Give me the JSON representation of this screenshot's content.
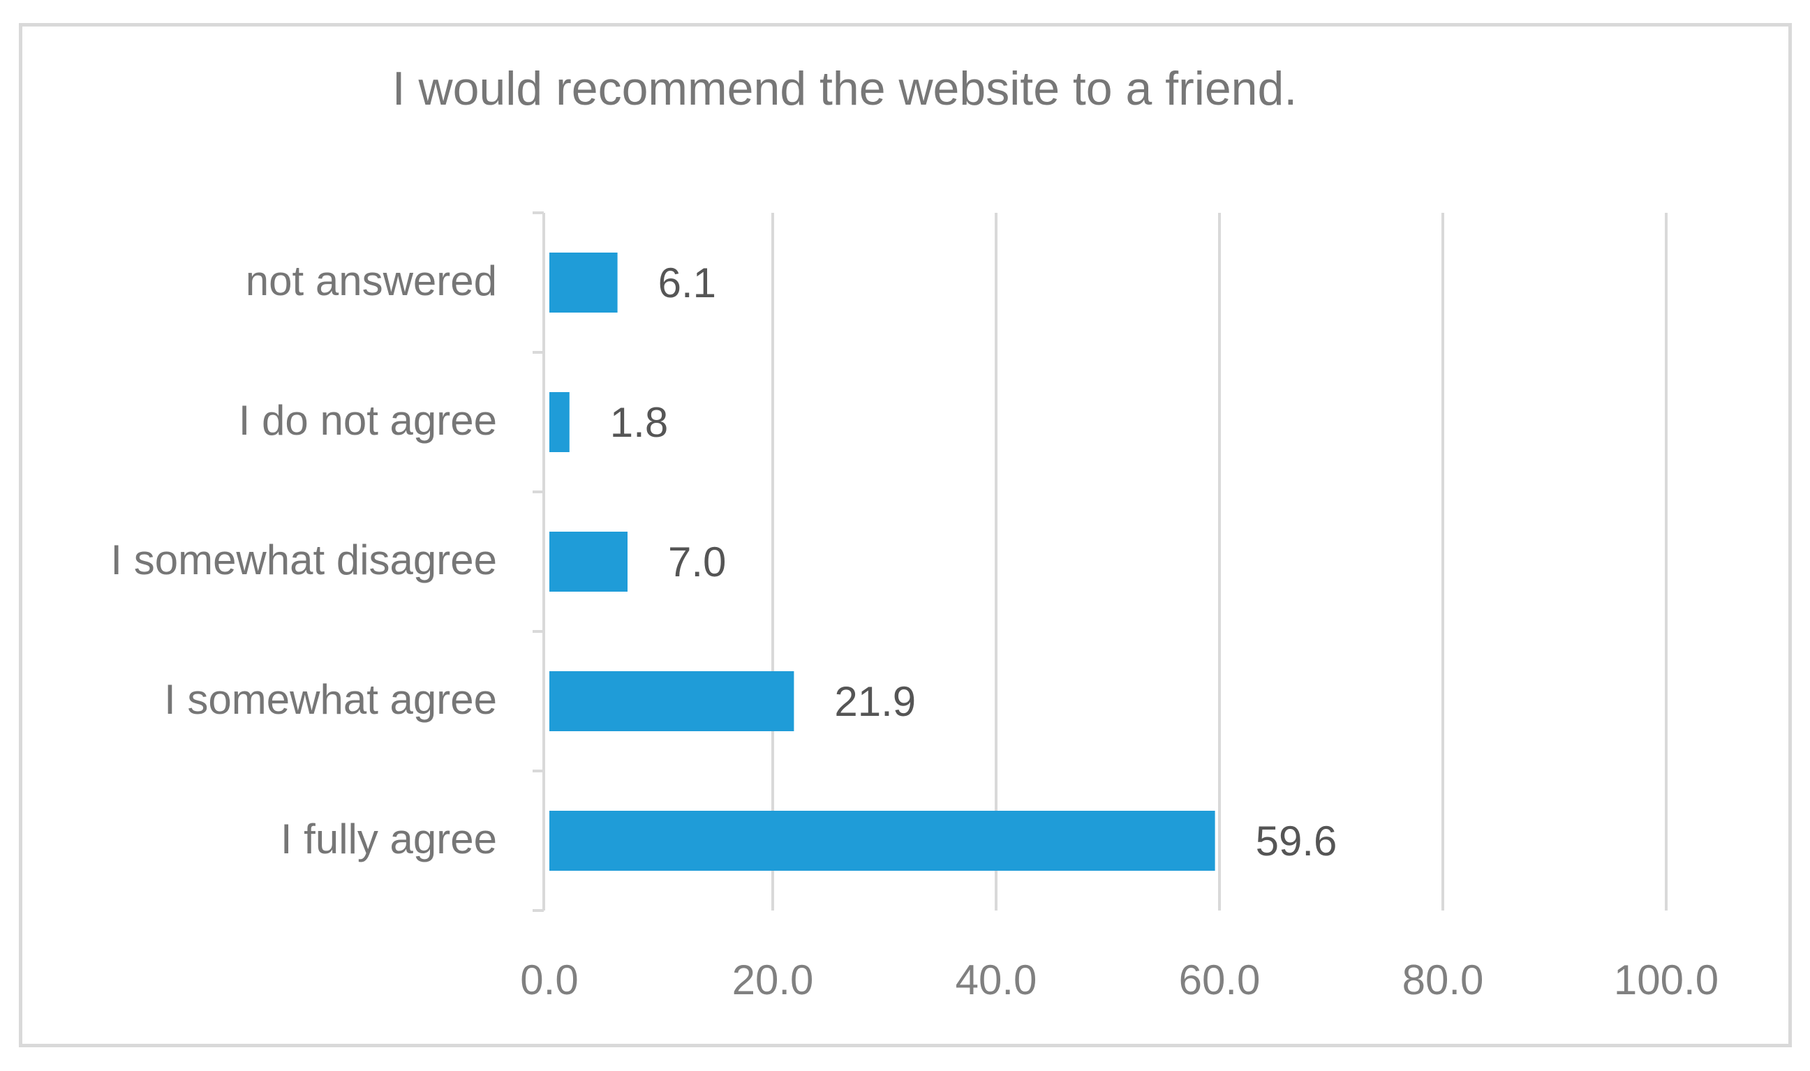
{
  "chart_data": {
    "type": "bar",
    "orientation": "horizontal",
    "title": "I would recommend the website to a friend.",
    "categories": [
      "I fully agree",
      "I somewhat agree",
      "I somewhat disagree",
      "I do not agree",
      "not answered"
    ],
    "values": [
      59.6,
      21.9,
      7.0,
      1.8,
      6.1
    ],
    "data_labels": [
      "59.6",
      "21.9",
      "7.0",
      "1.8",
      "6.1"
    ],
    "xlim": [
      0,
      100
    ],
    "xticks": [
      0,
      20,
      40,
      60,
      80,
      100
    ],
    "xtick_labels": [
      "0.0",
      "20.0",
      "40.0",
      "60.0",
      "80.0",
      "100.0"
    ],
    "xlabel": "",
    "ylabel": "",
    "grid": "vertical",
    "legend": "none",
    "bar_color": "#1f9cd8",
    "grid_color": "#d9d9d9",
    "frame_color": "#d9d9d9"
  }
}
